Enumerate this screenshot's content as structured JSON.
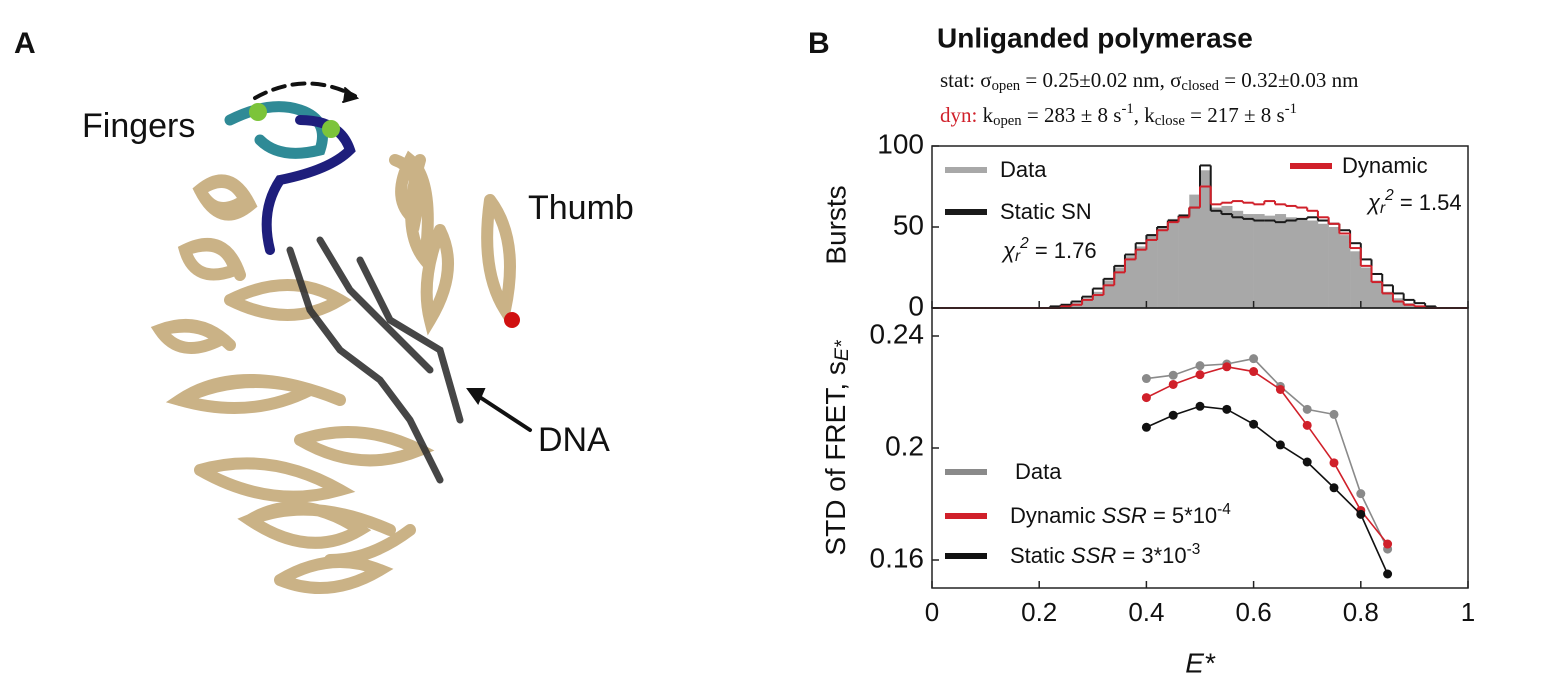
{
  "figure": {
    "panel_a": {
      "label": "A",
      "fingers": "Fingers",
      "thumb": "Thumb",
      "dna": "DNA"
    },
    "panel_b": {
      "label": "B",
      "title": "Unliganded polymerase",
      "stat_line": [
        "stat: σ",
        "open",
        " = 0.25±0.02 nm, σ",
        "closed",
        " = 0.32±0.03 nm"
      ],
      "dyn_line": [
        "dyn:",
        " k",
        "open",
        " = 283 ± 8 s",
        "-1",
        ", k",
        "close",
        " = 217 ± 8 s",
        "-1"
      ]
    }
  },
  "chart_data": [
    {
      "type": "histogram",
      "ylabel": "Bursts",
      "bins": [
        0,
        0.02,
        0.04,
        0.06,
        0.08,
        0.1,
        0.12,
        0.14,
        0.16,
        0.18,
        0.2,
        0.22,
        0.24,
        0.26,
        0.28,
        0.3,
        0.32,
        0.34,
        0.36,
        0.38,
        0.4,
        0.42,
        0.44,
        0.46,
        0.48,
        0.5,
        0.52,
        0.54,
        0.56,
        0.58,
        0.6,
        0.62,
        0.64,
        0.66,
        0.68,
        0.7,
        0.72,
        0.74,
        0.76,
        0.78,
        0.8,
        0.82,
        0.84,
        0.86,
        0.88,
        0.9,
        0.92,
        0.94,
        0.96,
        0.98,
        1
      ],
      "xlim": [
        0,
        1
      ],
      "ylim": [
        0,
        100
      ],
      "yticks": [
        0,
        50,
        100
      ],
      "series": [
        {
          "name": "Data",
          "color": "#a8a8a8",
          "values": [
            0,
            0,
            0,
            0,
            0,
            0,
            0,
            0,
            0,
            0,
            0,
            0,
            1,
            3,
            6,
            10,
            17,
            25,
            32,
            38,
            45,
            50,
            55,
            58,
            70,
            85,
            62,
            63,
            60,
            58,
            58,
            57,
            58,
            56,
            55,
            54,
            52,
            50,
            45,
            35,
            25,
            17,
            10,
            6,
            3,
            1,
            0,
            0,
            0,
            0
          ]
        },
        {
          "name": "Static SN",
          "color": "#1a1a1a",
          "values": [
            0,
            0,
            0,
            0,
            0,
            0,
            0,
            0,
            0,
            0,
            0,
            1,
            2,
            4,
            7,
            12,
            18,
            26,
            33,
            40,
            45,
            50,
            54,
            57,
            62,
            88,
            60,
            58,
            56,
            55,
            54,
            54,
            53,
            54,
            55,
            56,
            54,
            52,
            48,
            40,
            30,
            21,
            14,
            9,
            5,
            3,
            1,
            0,
            0,
            0
          ]
        },
        {
          "name": "Dynamic",
          "color": "#d0202a",
          "values": [
            0,
            0,
            0,
            0,
            0,
            0,
            0,
            0,
            0,
            0,
            0,
            0,
            1,
            2,
            5,
            8,
            14,
            22,
            30,
            36,
            42,
            48,
            53,
            56,
            62,
            75,
            64,
            65,
            66,
            65,
            64,
            66,
            64,
            63,
            62,
            60,
            56,
            52,
            46,
            37,
            26,
            16,
            9,
            4,
            2,
            1,
            0,
            0,
            0,
            0
          ]
        }
      ],
      "chi_static": [
        "χ",
        "r",
        "2",
        " = 1.76"
      ],
      "chi_dynamic": [
        "χ",
        "r",
        "2",
        " = 1.54"
      ]
    },
    {
      "type": "line",
      "ylabel": [
        "STD of FRET, s",
        "E*"
      ],
      "xlabel": "E*",
      "x": [
        0.4,
        0.45,
        0.5,
        0.55,
        0.6,
        0.65,
        0.7,
        0.75,
        0.8,
        0.85
      ],
      "xlim": [
        0,
        1
      ],
      "xticks": [
        0,
        0.2,
        0.4,
        0.6,
        0.8,
        1
      ],
      "ylim": [
        0.15,
        0.25
      ],
      "yticks": [
        0.16,
        0.2,
        0.24
      ],
      "series": [
        {
          "name": "Data",
          "color": "#8a8a8a",
          "values": [
            0.2248,
            0.226,
            0.2294,
            0.23,
            0.2319,
            0.222,
            0.2138,
            0.212,
            0.1837,
            0.1639
          ]
        },
        {
          "name": "Dynamic",
          "color": "#d0202a",
          "values": [
            0.218,
            0.2227,
            0.2262,
            0.229,
            0.2273,
            0.2209,
            0.2081,
            0.1947,
            0.1777,
            0.1657
          ]
        },
        {
          "name": "Static",
          "color": "#111111",
          "values": [
            0.2074,
            0.2117,
            0.2149,
            0.2138,
            0.2085,
            0.2011,
            0.195,
            0.1858,
            0.1763,
            0.155
          ]
        }
      ],
      "ssr_dynamic": [
        "SSR",
        " = 5*10",
        "-4"
      ],
      "ssr_static": [
        "SSR",
        " = 3*10",
        "-3"
      ]
    }
  ]
}
